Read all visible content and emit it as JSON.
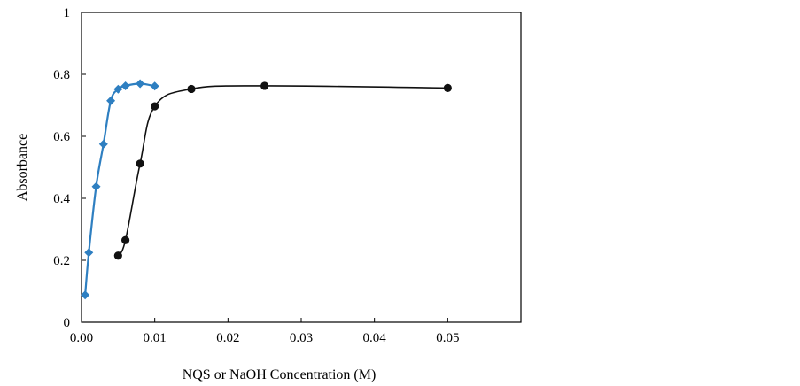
{
  "chart_data": {
    "type": "scatter",
    "title": "",
    "xlabel": "NQS or NaOH Concentration (M)",
    "ylabel": "Absorbance",
    "xlim": [
      0,
      0.06
    ],
    "ylim": [
      0,
      1
    ],
    "x_ticks": [
      "0.00",
      "0.01",
      "0.02",
      "0.03",
      "0.04",
      "0.05"
    ],
    "x_tick_values": [
      0,
      0.01,
      0.02,
      0.03,
      0.04,
      0.05
    ],
    "y_ticks": [
      "0",
      "0.2",
      "0.4",
      "0.6",
      "0.8",
      "1"
    ],
    "y_tick_values": [
      0,
      0.2,
      0.4,
      0.6,
      0.8,
      1
    ],
    "grid": false,
    "legend": "none",
    "series": [
      {
        "marker": "diamond",
        "color": "#2E7FC1",
        "x": [
          0.0005,
          0.001,
          0.002,
          0.003,
          0.004,
          0.005,
          0.006,
          0.008,
          0.01
        ],
        "y": [
          0.088,
          0.225,
          0.438,
          0.575,
          0.715,
          0.752,
          0.763,
          0.77,
          0.762
        ]
      },
      {
        "marker": "circle",
        "color": "#111111",
        "x": [
          0.005,
          0.006,
          0.008,
          0.01,
          0.015,
          0.025,
          0.05
        ],
        "y": [
          0.215,
          0.265,
          0.512,
          0.697,
          0.753,
          0.763,
          0.756
        ]
      }
    ]
  }
}
